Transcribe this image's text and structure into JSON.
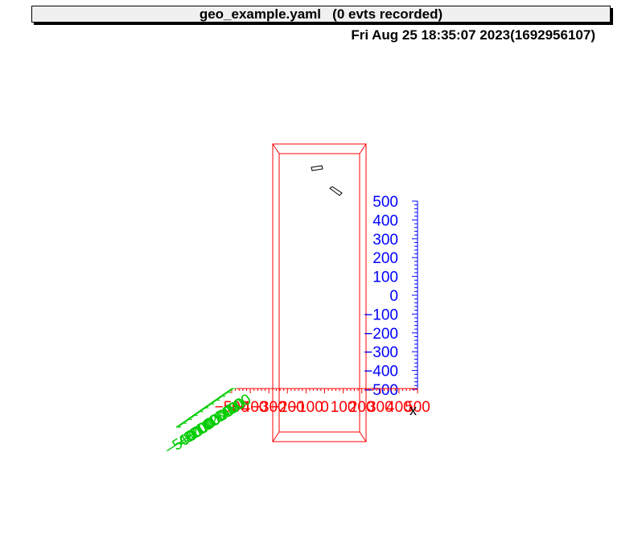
{
  "header": {
    "title": "geo_example.yaml   (0 evts recorded)",
    "timestamp": "Fri Aug 25 18:35:07 2023(1692956107)"
  },
  "axes": {
    "y_labels": [
      "500",
      "400",
      "300",
      "200",
      "100",
      "0",
      "−100",
      "−200",
      "−300",
      "−400",
      "−500"
    ],
    "x_labels": [
      "−500",
      "−400",
      "−300",
      "−200",
      "−100",
      "0",
      "100",
      "200",
      "300",
      "400",
      "500"
    ],
    "z_labels": [
      "−500",
      "−400",
      "−300",
      "−200",
      "−100",
      "0",
      "100",
      "200",
      "300",
      "400",
      "500"
    ],
    "x_title": "x",
    "colors": {
      "y": "#0000ff",
      "x": "#ff0000",
      "z": "#00cc00",
      "box": "#ff0000",
      "volume": "#000000"
    }
  }
}
